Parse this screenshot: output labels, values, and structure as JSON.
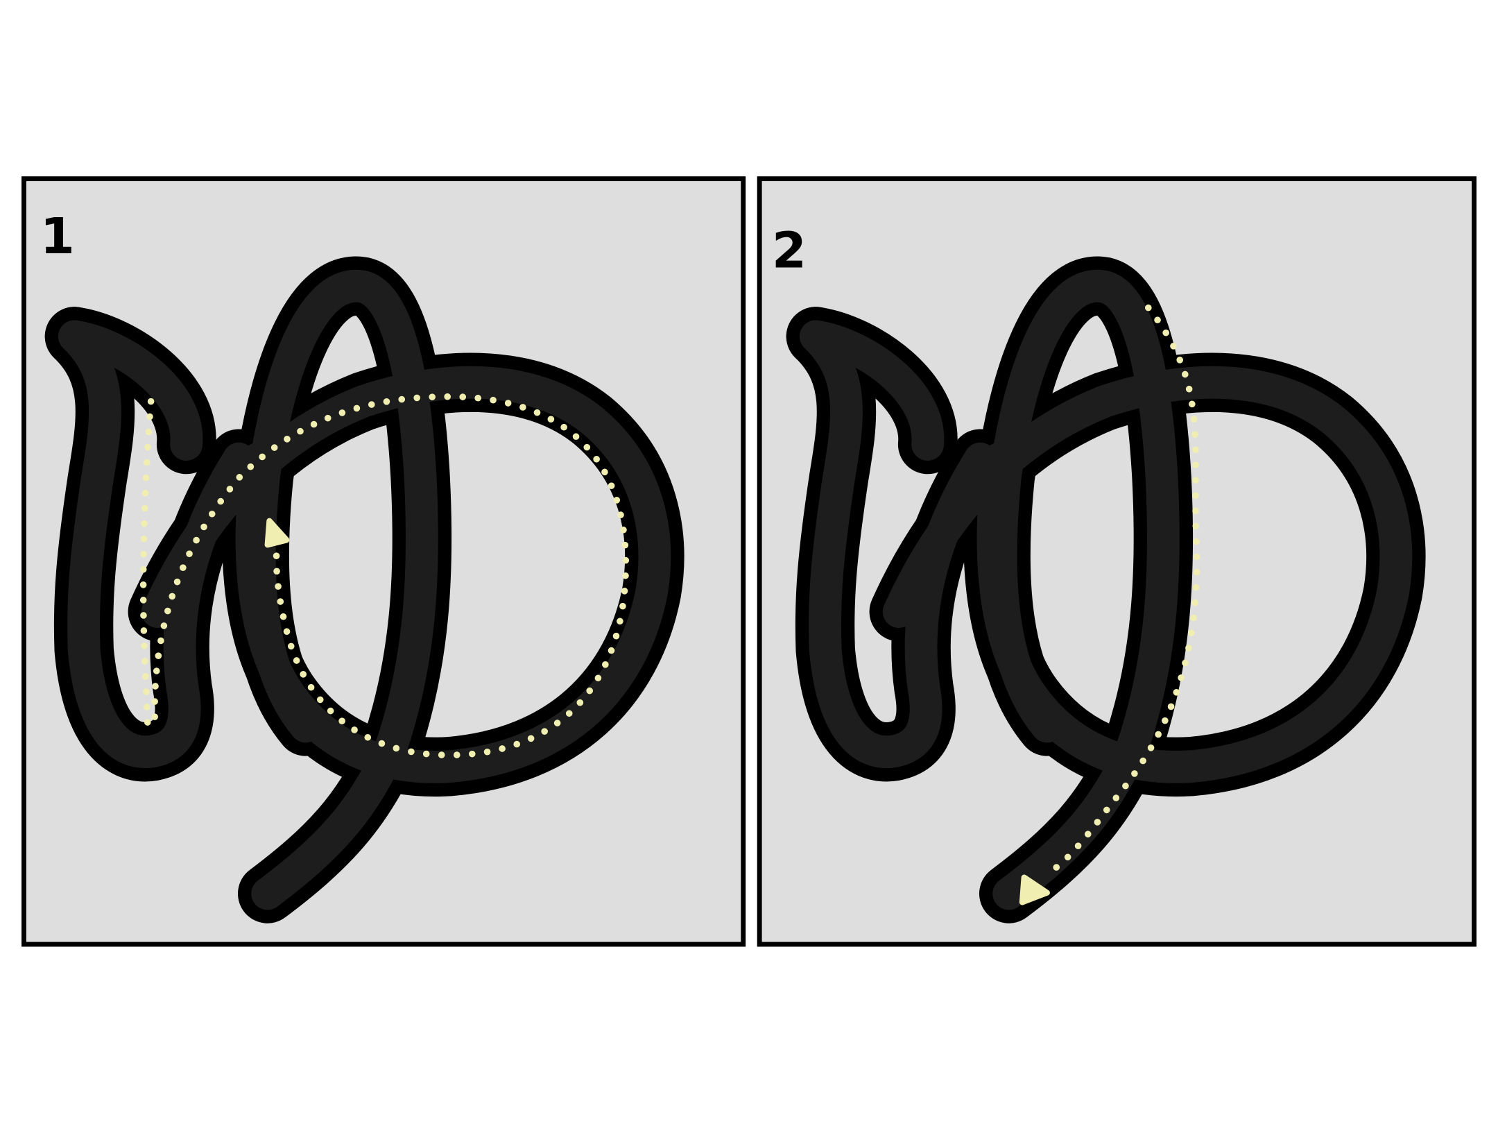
{
  "panels": [
    {
      "label": "1"
    },
    {
      "label": "2"
    }
  ]
}
